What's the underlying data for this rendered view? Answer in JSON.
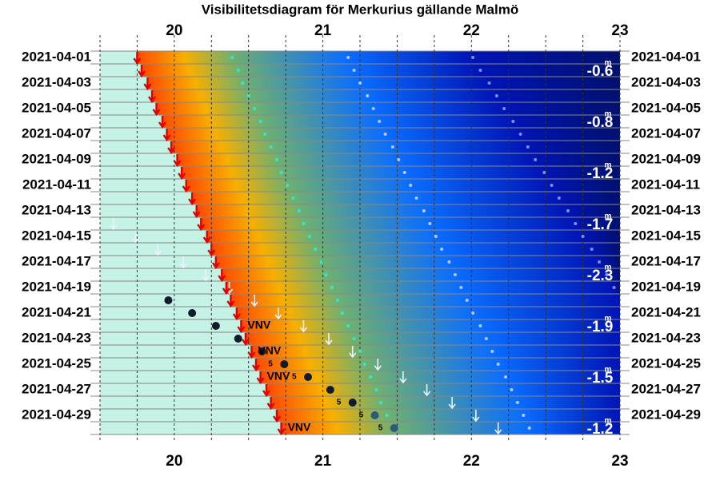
{
  "chart_data": {
    "type": "visibility",
    "title": "Visibilitetsdiagram för Merkurius gällande Malmö",
    "xlim": [
      19.5,
      23
    ],
    "xticks": [
      20,
      21,
      22,
      23
    ],
    "xminorticks": [
      19.75,
      20.25,
      20.5,
      20.75,
      21.25,
      21.5,
      21.75,
      22.25,
      22.5,
      22.75
    ],
    "rows": [
      "2021-04-01",
      null,
      "2021-04-03",
      null,
      "2021-04-05",
      null,
      "2021-04-07",
      null,
      "2021-04-09",
      null,
      "2021-04-11",
      null,
      "2021-04-13",
      null,
      "2021-04-15",
      null,
      "2021-04-17",
      null,
      "2021-04-19",
      null,
      "2021-04-21",
      null,
      "2021-04-23",
      null,
      "2021-04-25",
      null,
      "2021-04-27",
      null,
      "2021-04-29",
      null
    ],
    "sunset": [
      19.75,
      19.78,
      19.82,
      19.85,
      19.88,
      19.92,
      19.95,
      19.98,
      20.02,
      20.05,
      20.08,
      20.12,
      20.15,
      20.18,
      20.22,
      20.25,
      20.28,
      20.32,
      20.35,
      20.38,
      20.42,
      20.45,
      20.48,
      20.52,
      20.55,
      20.58,
      20.62,
      20.65,
      20.69,
      20.72
    ],
    "twilight_1": [
      20.39,
      20.43,
      20.46,
      20.5,
      20.54,
      20.58,
      20.61,
      20.65,
      20.69,
      20.72,
      20.76,
      20.8,
      20.84,
      20.87,
      20.91,
      20.95,
      20.99,
      21.02,
      21.06,
      21.1,
      21.13,
      21.17,
      21.21,
      21.25,
      21.28,
      21.32,
      21.36,
      21.39,
      21.43,
      21.47
    ],
    "twilight_2": [
      21.17,
      21.21,
      21.25,
      21.3,
      21.34,
      21.38,
      21.42,
      21.47,
      21.51,
      21.55,
      21.59,
      21.63,
      21.68,
      21.72,
      21.76,
      21.8,
      21.85,
      21.89,
      21.93,
      21.97,
      22.01,
      22.06,
      22.1,
      22.14,
      22.18,
      22.23,
      22.27,
      22.31,
      22.35,
      22.39
    ],
    "twilight_3": [
      22.01,
      22.06,
      22.12,
      22.17,
      22.22,
      22.28,
      22.33,
      22.38,
      22.43,
      22.49,
      22.54,
      22.59,
      22.65,
      22.7,
      22.75,
      22.81,
      22.86,
      22.91,
      22.96,
      null,
      null,
      null,
      null,
      null,
      null,
      null,
      null,
      null,
      null,
      null
    ],
    "moonset": [
      null,
      null,
      null,
      null,
      null,
      null,
      null,
      null,
      null,
      null,
      null,
      null,
      null,
      19.59,
      19.74,
      19.89,
      20.06,
      20.21,
      20.37,
      20.54,
      20.7,
      20.87,
      21.04,
      21.2,
      21.37,
      21.54,
      21.7,
      21.87,
      22.03,
      22.18
    ],
    "mercury_set": [
      null,
      null,
      null,
      null,
      null,
      null,
      null,
      null,
      null,
      null,
      null,
      null,
      null,
      null,
      null,
      null,
      null,
      null,
      null,
      19.96,
      20.12,
      20.28,
      20.43,
      20.59,
      20.74,
      20.9,
      21.05,
      21.2,
      21.35,
      21.48
    ],
    "azimuth_labels": [
      null,
      null,
      null,
      null,
      null,
      null,
      null,
      null,
      null,
      null,
      null,
      null,
      null,
      null,
      null,
      null,
      null,
      null,
      null,
      null,
      null,
      "VNV",
      null,
      "VNV",
      null,
      "VNV",
      null,
      null,
      null,
      "VNV"
    ],
    "altitude_labels": [
      null,
      null,
      null,
      null,
      null,
      null,
      null,
      null,
      null,
      null,
      null,
      null,
      null,
      null,
      null,
      null,
      null,
      null,
      null,
      null,
      null,
      null,
      null,
      null,
      "5",
      "5",
      null,
      "5",
      "5",
      "5"
    ],
    "magnitudes": [
      null,
      -0.6,
      null,
      null,
      null,
      -0.8,
      null,
      null,
      null,
      -1.2,
      null,
      null,
      null,
      -1.7,
      null,
      null,
      null,
      -2.3,
      null,
      null,
      null,
      -1.9,
      null,
      null,
      null,
      -1.5,
      null,
      null,
      null,
      -1.2
    ],
    "magnitude_unit": "m"
  }
}
